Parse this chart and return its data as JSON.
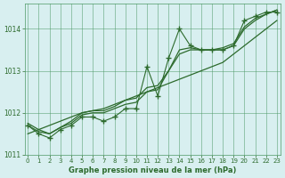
{
  "hours": [
    0,
    1,
    2,
    3,
    4,
    5,
    6,
    7,
    8,
    9,
    10,
    11,
    12,
    13,
    14,
    15,
    16,
    17,
    18,
    19,
    20,
    21,
    22,
    23
  ],
  "pressure_actual": [
    1011.7,
    1011.5,
    1011.4,
    1011.6,
    1011.7,
    1011.9,
    1011.9,
    1011.8,
    1011.9,
    1012.1,
    1012.1,
    1013.1,
    1012.4,
    1013.3,
    1014.0,
    1013.6,
    1013.5,
    1013.5,
    1013.5,
    1013.6,
    1014.2,
    1014.3,
    1014.4,
    1014.4
  ],
  "pressure_line2": [
    1011.7,
    1011.55,
    1011.5,
    1011.65,
    1011.75,
    1011.95,
    1012.0,
    1012.0,
    1012.1,
    1012.2,
    1012.25,
    1012.5,
    1012.55,
    1013.0,
    1013.5,
    1013.55,
    1013.5,
    1013.5,
    1013.5,
    1013.6,
    1014.0,
    1014.2,
    1014.35,
    1014.45
  ],
  "pressure_line3": [
    1011.75,
    1011.6,
    1011.5,
    1011.65,
    1011.8,
    1012.0,
    1012.05,
    1012.05,
    1012.15,
    1012.3,
    1012.35,
    1012.6,
    1012.65,
    1013.0,
    1013.4,
    1013.5,
    1013.5,
    1013.5,
    1013.55,
    1013.65,
    1014.05,
    1014.25,
    1014.35,
    1014.45
  ],
  "pressure_trend": [
    1011.5,
    1011.6,
    1011.7,
    1011.8,
    1011.9,
    1012.0,
    1012.05,
    1012.1,
    1012.2,
    1012.3,
    1012.4,
    1012.5,
    1012.6,
    1012.7,
    1012.8,
    1012.9,
    1013.0,
    1013.1,
    1013.2,
    1013.4,
    1013.6,
    1013.8,
    1014.0,
    1014.2
  ],
  "bg_color": "#d8eff0",
  "grid_color": "#4d9966",
  "line_color": "#2d6b2d",
  "text_color": "#2d6b2d",
  "xlabel": "Graphe pression niveau de la mer (hPa)",
  "ylim": [
    1011.0,
    1014.6
  ],
  "xlim": [
    -0.3,
    23.3
  ],
  "yticks": [
    1011,
    1012,
    1013,
    1014
  ],
  "xticks": [
    0,
    1,
    2,
    3,
    4,
    5,
    6,
    7,
    8,
    9,
    10,
    11,
    12,
    13,
    14,
    15,
    16,
    17,
    18,
    19,
    20,
    21,
    22,
    23
  ]
}
